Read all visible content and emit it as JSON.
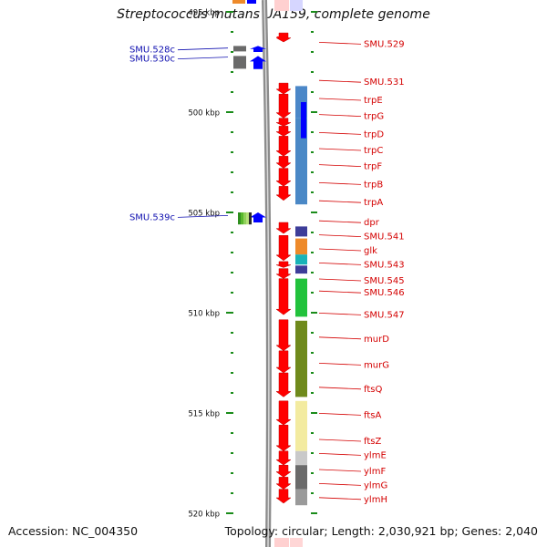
{
  "title": "Streptococcus mutans UA159, complete genome",
  "footer": {
    "accession": "Accession: NC_004350",
    "summary": "Topology: circular; Length: 2,030,921 bp; Genes: 2,040"
  },
  "colors": {
    "backbone": "#8c8c8c",
    "forward_gene": "#ff0000",
    "reverse_gene": "#0000ff",
    "tick": "#1a8c1a",
    "right_label": "#d40000",
    "left_label": "#1010b0"
  },
  "axis": {
    "unit": "kbp",
    "major_ticks": [
      {
        "pos": 495,
        "label": "495 kbp"
      },
      {
        "pos": 500,
        "label": "500 kbp"
      },
      {
        "pos": 505,
        "label": "505 kbp"
      },
      {
        "pos": 510,
        "label": "510 kbp"
      },
      {
        "pos": 515,
        "label": "515 kbp"
      },
      {
        "pos": 520,
        "label": "520 kbp"
      }
    ],
    "minor_tick_kbp": 1
  },
  "left_labels": [
    {
      "name": "SMU.528c",
      "at": 496.85
    },
    {
      "name": "SMU.530c",
      "at": 497.3
    },
    {
      "name": "SMU.539c",
      "at": 505.2
    }
  ],
  "right_labels": [
    {
      "name": "SMU.529",
      "at": 496.7
    },
    {
      "name": "SMU.531",
      "at": 498.6
    },
    {
      "name": "trpE",
      "at": 499.5
    },
    {
      "name": "trpG",
      "at": 500.3
    },
    {
      "name": "trpD",
      "at": 501.2
    },
    {
      "name": "trpC",
      "at": 502.0
    },
    {
      "name": "trpF",
      "at": 502.8
    },
    {
      "name": "trpB",
      "at": 503.7
    },
    {
      "name": "trpA",
      "at": 504.6
    },
    {
      "name": "dpr",
      "at": 505.6
    },
    {
      "name": "SMU.541",
      "at": 506.3
    },
    {
      "name": "glk",
      "at": 507.0
    },
    {
      "name": "SMU.543",
      "at": 507.7
    },
    {
      "name": "SMU.545",
      "at": 508.5
    },
    {
      "name": "SMU.546",
      "at": 509.1
    },
    {
      "name": "SMU.547",
      "at": 510.2
    },
    {
      "name": "murD",
      "at": 511.4
    },
    {
      "name": "murG",
      "at": 512.7
    },
    {
      "name": "ftsQ",
      "at": 513.9
    },
    {
      "name": "ftsA",
      "at": 515.2
    },
    {
      "name": "ftsZ",
      "at": 516.5
    },
    {
      "name": "ylmE",
      "at": 517.2
    },
    {
      "name": "ylmF",
      "at": 518.0
    },
    {
      "name": "ylmG",
      "at": 518.7
    },
    {
      "name": "ylmH",
      "at": 519.4
    }
  ],
  "forward_genes": [
    {
      "start": 496.05,
      "end": 496.5
    },
    {
      "start": 498.55,
      "end": 499.1
    },
    {
      "start": 499.1,
      "end": 500.3
    },
    {
      "start": 500.3,
      "end": 500.7
    },
    {
      "start": 500.7,
      "end": 501.2
    },
    {
      "start": 501.2,
      "end": 502.2
    },
    {
      "start": 502.2,
      "end": 502.8
    },
    {
      "start": 502.8,
      "end": 503.7
    },
    {
      "start": 503.7,
      "end": 504.4
    },
    {
      "start": 505.5,
      "end": 506.05
    },
    {
      "start": 506.15,
      "end": 507.4
    },
    {
      "start": 507.45,
      "end": 507.75
    },
    {
      "start": 507.8,
      "end": 508.3
    },
    {
      "start": 508.3,
      "end": 510.1
    },
    {
      "start": 510.35,
      "end": 511.9
    },
    {
      "start": 511.9,
      "end": 513.0
    },
    {
      "start": 513.0,
      "end": 514.2
    },
    {
      "start": 514.4,
      "end": 515.6
    },
    {
      "start": 515.6,
      "end": 516.9
    },
    {
      "start": 516.9,
      "end": 517.6
    },
    {
      "start": 517.6,
      "end": 518.2
    },
    {
      "start": 518.2,
      "end": 518.8
    },
    {
      "start": 518.8,
      "end": 519.5
    }
  ],
  "reverse_genes": [
    {
      "start": 496.7,
      "end": 497.0
    },
    {
      "start": 497.2,
      "end": 497.85
    },
    {
      "start": 505.0,
      "end": 505.5
    }
  ],
  "function_blocks": [
    {
      "start": 498.7,
      "end": 500.3,
      "color": "#4b87c8"
    },
    {
      "start": 500.3,
      "end": 504.6,
      "color": "#4a88c6"
    },
    {
      "start": 505.7,
      "end": 506.2,
      "color": "#3d3d99"
    },
    {
      "start": 506.3,
      "end": 507.1,
      "color": "#ee8a2a"
    },
    {
      "start": 507.1,
      "end": 507.6,
      "color": "#19b3b8"
    },
    {
      "start": 507.65,
      "end": 508.05,
      "color": "#3d3d99"
    },
    {
      "start": 508.3,
      "end": 510.2,
      "color": "#22c23c"
    },
    {
      "start": 510.4,
      "end": 514.2,
      "color": "#6f8a1c"
    },
    {
      "start": 514.4,
      "end": 516.9,
      "color": "#f3eba0"
    },
    {
      "start": 516.9,
      "end": 517.6,
      "color": "#c9c9c9"
    },
    {
      "start": 517.6,
      "end": 518.8,
      "color": "#6a6a6a"
    },
    {
      "start": 518.8,
      "end": 519.6,
      "color": "#9a9a9a"
    }
  ]
}
